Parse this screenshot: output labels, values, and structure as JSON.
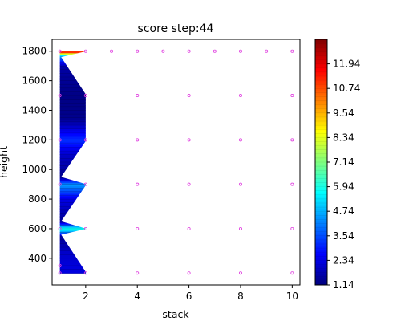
{
  "chart_data": {
    "type": "contour",
    "title": "score step:44",
    "xlabel": "stack",
    "ylabel": "height",
    "xlim": [
      0.7,
      10.3
    ],
    "ylim": [
      220,
      1880
    ],
    "x_ticks": [
      2,
      4,
      6,
      8,
      10
    ],
    "y_ticks": [
      400,
      600,
      800,
      1000,
      1200,
      1400,
      1600,
      1800
    ],
    "grid": false,
    "colorbar": {
      "min": 1.14,
      "max": 13.14,
      "ticks": [
        1.14,
        2.34,
        3.54,
        4.74,
        5.94,
        7.14,
        8.34,
        9.54,
        10.74,
        11.94
      ],
      "colormap": [
        "#00007f",
        "#0000ff",
        "#007fff",
        "#00ffff",
        "#7fff7f",
        "#ffff00",
        "#ff7f00",
        "#ff0000",
        "#7f0000"
      ]
    },
    "contour_region": {
      "x_range": [
        1,
        2
      ],
      "profile": [
        {
          "height": 300,
          "score": 2.3
        },
        {
          "height": 450,
          "score": 2.0
        },
        {
          "height": 550,
          "score": 1.4
        },
        {
          "height": 600,
          "score": 6.2
        },
        {
          "height": 650,
          "score": 1.4
        },
        {
          "height": 800,
          "score": 2.3
        },
        {
          "height": 900,
          "score": 4.5
        },
        {
          "height": 950,
          "score": 1.3
        },
        {
          "height": 1100,
          "score": 2.0
        },
        {
          "height": 1200,
          "score": 3.2
        },
        {
          "height": 1350,
          "score": 1.3
        },
        {
          "height": 1500,
          "score": 1.2
        },
        {
          "height": 1700,
          "score": 1.6
        },
        {
          "height": 1770,
          "score": 4.5
        },
        {
          "height": 1800,
          "score": 12.5
        }
      ]
    },
    "sample_points": [
      {
        "x": 1,
        "y": 300
      },
      {
        "x": 2,
        "y": 300
      },
      {
        "x": 4,
        "y": 300
      },
      {
        "x": 6,
        "y": 300
      },
      {
        "x": 8,
        "y": 300
      },
      {
        "x": 10,
        "y": 300
      },
      {
        "x": 1,
        "y": 600
      },
      {
        "x": 2,
        "y": 600
      },
      {
        "x": 4,
        "y": 600
      },
      {
        "x": 6,
        "y": 600
      },
      {
        "x": 8,
        "y": 600
      },
      {
        "x": 10,
        "y": 600
      },
      {
        "x": 1,
        "y": 900
      },
      {
        "x": 2,
        "y": 900
      },
      {
        "x": 4,
        "y": 900
      },
      {
        "x": 6,
        "y": 900
      },
      {
        "x": 8,
        "y": 900
      },
      {
        "x": 10,
        "y": 900
      },
      {
        "x": 1,
        "y": 1200
      },
      {
        "x": 2,
        "y": 1200
      },
      {
        "x": 4,
        "y": 1200
      },
      {
        "x": 6,
        "y": 1200
      },
      {
        "x": 8,
        "y": 1200
      },
      {
        "x": 10,
        "y": 1200
      },
      {
        "x": 1,
        "y": 1500
      },
      {
        "x": 2,
        "y": 1500
      },
      {
        "x": 4,
        "y": 1500
      },
      {
        "x": 6,
        "y": 1500
      },
      {
        "x": 8,
        "y": 1500
      },
      {
        "x": 10,
        "y": 1500
      },
      {
        "x": 1,
        "y": 1800
      },
      {
        "x": 2,
        "y": 1800
      },
      {
        "x": 3,
        "y": 1800
      },
      {
        "x": 4,
        "y": 1800
      },
      {
        "x": 5,
        "y": 1800
      },
      {
        "x": 6,
        "y": 1800
      },
      {
        "x": 7,
        "y": 1800
      },
      {
        "x": 8,
        "y": 1800
      },
      {
        "x": 9,
        "y": 1800
      },
      {
        "x": 10,
        "y": 1800
      },
      {
        "x": 1,
        "y": 350
      }
    ],
    "point_color": "#e040e0"
  }
}
